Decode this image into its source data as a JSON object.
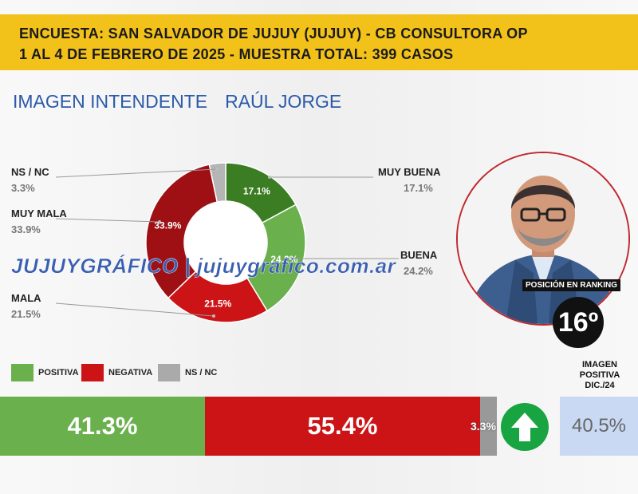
{
  "header": {
    "line1": "ENCUESTA: SAN SALVADOR DE JUJUY (JUJUY) - CB CONSULTORA OP",
    "line2": "1 AL 4 DE FEBRERO DE 2025 - MUESTRA TOTAL: 399 CASOS"
  },
  "title": {
    "label": "IMAGEN INTENDENTE",
    "name": "RAÚL JORGE"
  },
  "watermark": "JUJUYGRÁFICO | jujuygrafico.com.ar",
  "ranking": {
    "label": "POSICIÓN EN RANKING",
    "value": "16º"
  },
  "previous": {
    "label_line1": "IMAGEN",
    "label_line2": "POSITIVA",
    "label_line3": "DIC./24",
    "value": "40.5%"
  },
  "legend": [
    {
      "label": "POSITIVA",
      "color": "#6ab04c"
    },
    {
      "label": "NEGATIVA",
      "color": "#cc1417"
    },
    {
      "label": "NS / NC",
      "color": "#aaaaaa"
    }
  ],
  "chart_data": [
    {
      "type": "pie",
      "donut": true,
      "categories": [
        "MUY BUENA",
        "BUENA",
        "MALA",
        "MUY MALA",
        "NS / NC"
      ],
      "values": [
        17.1,
        24.2,
        21.5,
        33.9,
        3.3
      ],
      "value_labels": [
        "17.1%",
        "24.2%",
        "21.5%",
        "33.9%",
        "3.3%"
      ],
      "colors": [
        "#3a7d22",
        "#6ab04c",
        "#cc1417",
        "#9e1014",
        "#b5b5b5"
      ]
    },
    {
      "type": "bar",
      "orientation": "horizontal-stacked",
      "categories": [
        "POSITIVA",
        "NEGATIVA",
        "NS / NC"
      ],
      "values": [
        41.3,
        55.4,
        3.3
      ],
      "value_labels": [
        "41.3%",
        "55.4%",
        "3.3%"
      ],
      "colors": [
        "#6ab04c",
        "#cc1417",
        "#999999"
      ]
    }
  ]
}
